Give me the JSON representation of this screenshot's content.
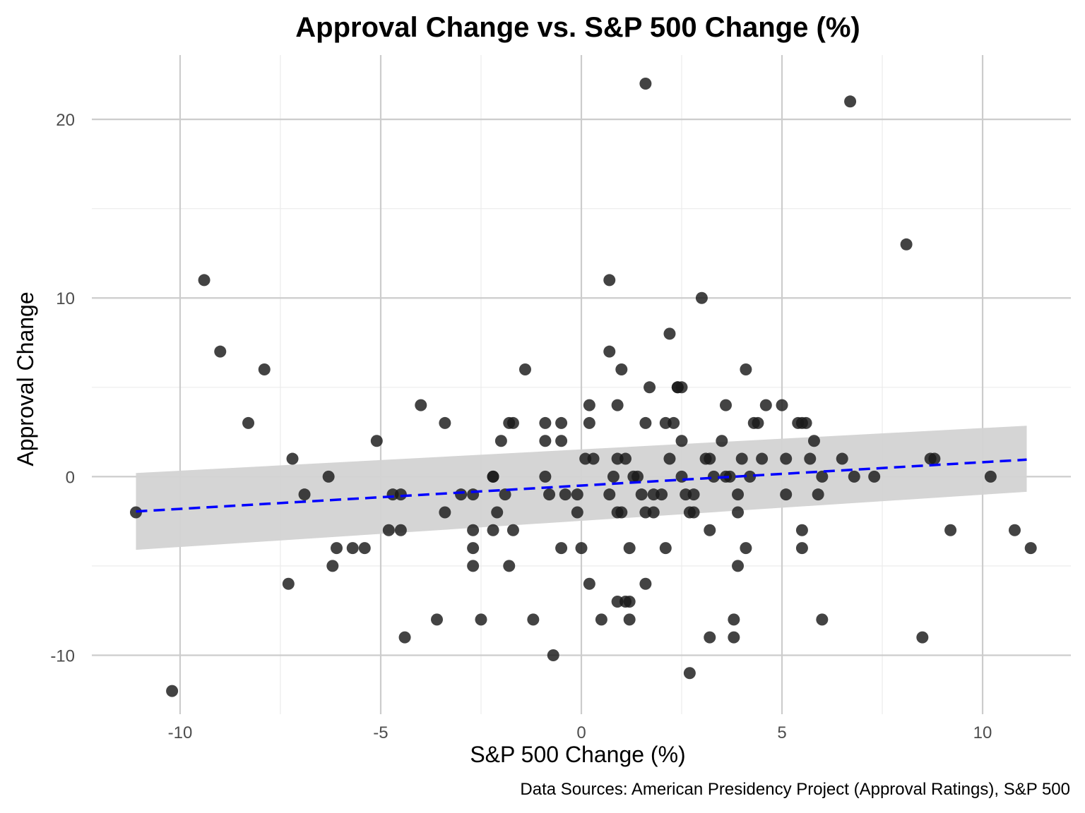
{
  "chart_data": {
    "type": "scatter",
    "title": "Approval Change vs. S&P 500 Change (%)",
    "xlabel": "S&P 500 Change (%)",
    "ylabel": "Approval Change",
    "caption": "Data Sources: American Presidency Project (Approval Ratings), S&P 500",
    "xlim": [
      -12.2,
      12.2
    ],
    "ylim": [
      -13.3,
      23.6
    ],
    "x_ticks": [
      -10,
      -5,
      0,
      5,
      10
    ],
    "x_tick_labels": [
      "-10",
      "-5",
      "0",
      "5",
      "10"
    ],
    "y_ticks": [
      -10,
      0,
      10,
      20
    ],
    "y_tick_labels": [
      "-10",
      "0",
      "10",
      "20"
    ],
    "grid": true,
    "colors": {
      "points": "#1a1a1a",
      "trend_line": "#0000ff",
      "confidence_band": "#d3d3d3",
      "grid_major": "#cccccc",
      "grid_minor": "#ebebeb"
    },
    "trend_line": {
      "style": "dashed",
      "x": [
        -11.1,
        11.1
      ],
      "y": [
        -1.95,
        0.95
      ],
      "ci_lower": [
        -4.1,
        -0.85
      ],
      "ci_upper": [
        0.2,
        2.85
      ]
    },
    "points": {
      "x": [
        1.6,
        6.7,
        8.1,
        -9.4,
        0.7,
        3.0,
        -9.0,
        2.2,
        -7.9,
        0.7,
        -1.4,
        1.0,
        4.1,
        -8.3,
        -3.4,
        -1.8,
        -1.7,
        -0.9,
        -0.5,
        0.2,
        1.6,
        2.1,
        2.3,
        4.3,
        4.4,
        5.4,
        5.5,
        5.6,
        -4.0,
        0.2,
        0.9,
        2.4,
        3.6,
        4.6,
        5.0,
        -7.2,
        0.1,
        0.3,
        0.9,
        1.1,
        2.2,
        3.1,
        3.2,
        4.0,
        4.5,
        5.1,
        5.7,
        6.5,
        8.7,
        8.8,
        -5.1,
        -2.0,
        -0.9,
        -0.5,
        2.5,
        3.5,
        5.8,
        1.7,
        2.4,
        2.5,
        -6.3,
        -2.2,
        -2.2,
        -0.9,
        0.8,
        1.3,
        1.4,
        2.5,
        3.3,
        3.6,
        3.7,
        4.2,
        6.0,
        6.8,
        7.3,
        10.2,
        -11.1,
        -6.9,
        -4.7,
        -4.5,
        -3.0,
        -2.7,
        -1.9,
        -0.8,
        -0.4,
        -0.1,
        0.7,
        1.5,
        1.8,
        2.0,
        2.6,
        2.8,
        3.9,
        5.1,
        5.9,
        -3.4,
        -2.1,
        -0.1,
        0.9,
        1.0,
        1.6,
        1.8,
        2.7,
        2.8,
        3.9,
        -4.8,
        -4.5,
        -2.7,
        -2.2,
        -1.7,
        3.2,
        5.5,
        9.2,
        10.8,
        -6.1,
        -5.7,
        -5.4,
        -2.7,
        -0.5,
        0.0,
        1.2,
        2.1,
        4.1,
        5.5,
        11.2,
        -7.3,
        -6.2,
        -2.7,
        -1.8,
        0.2,
        1.6,
        3.9,
        -3.6,
        -2.5,
        -1.2,
        0.5,
        1.2,
        1.2,
        3.8,
        6.0,
        0.9,
        1.1,
        -4.4,
        3.2,
        3.8,
        8.5,
        -0.7,
        2.7,
        -10.2
      ],
      "y": [
        22,
        21,
        13,
        11,
        11,
        10,
        7,
        8,
        6,
        7,
        6,
        6,
        6,
        3,
        3,
        3,
        3,
        3,
        3,
        3,
        3,
        3,
        3,
        3,
        3,
        3,
        3,
        3,
        4,
        4,
        4,
        5,
        4,
        4,
        4,
        1,
        1,
        1,
        1,
        1,
        1,
        1,
        1,
        1,
        1,
        1,
        1,
        1,
        1,
        1,
        2,
        2,
        2,
        2,
        2,
        2,
        2,
        5,
        5,
        5,
        0,
        0,
        0,
        0,
        0,
        0,
        0,
        0,
        0,
        0,
        0,
        0,
        0,
        0,
        0,
        0,
        -2,
        -1,
        -1,
        -1,
        -1,
        -1,
        -1,
        -1,
        -1,
        -1,
        -1,
        -1,
        -1,
        -1,
        -1,
        -1,
        -1,
        -1,
        -1,
        -2,
        -2,
        -2,
        -2,
        -2,
        -2,
        -2,
        -2,
        -2,
        -2,
        -3,
        -3,
        -3,
        -3,
        -3,
        -3,
        -3,
        -3,
        -3,
        -4,
        -4,
        -4,
        -4,
        -4,
        -4,
        -4,
        -4,
        -4,
        -4,
        -4,
        -6,
        -5,
        -5,
        -5,
        -6,
        -6,
        -5,
        -8,
        -8,
        -8,
        -8,
        -8,
        -7,
        -8,
        -8,
        -7,
        -7,
        -9,
        -9,
        -9,
        -9,
        -10,
        -11,
        -12
      ]
    }
  }
}
